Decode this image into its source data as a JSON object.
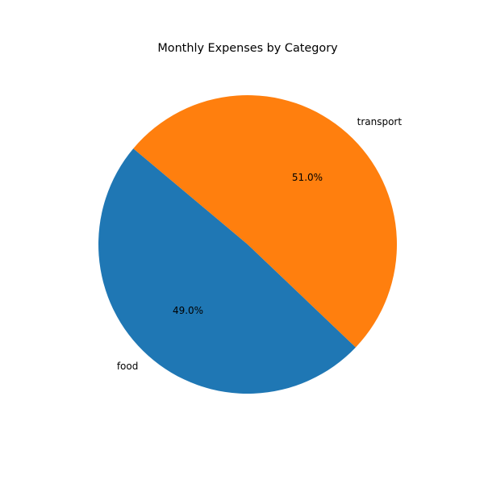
{
  "chart_data": {
    "type": "pie",
    "title": "Monthly Expenses by Category",
    "categories": [
      "food",
      "transport"
    ],
    "values": [
      49.0,
      51.0
    ],
    "percent_labels": [
      "49.0%",
      "51.0%"
    ],
    "colors": [
      "#1f77b4",
      "#ff7f0e"
    ],
    "start_angle_deg": 140,
    "counterclockwise": true,
    "legend": "none"
  }
}
